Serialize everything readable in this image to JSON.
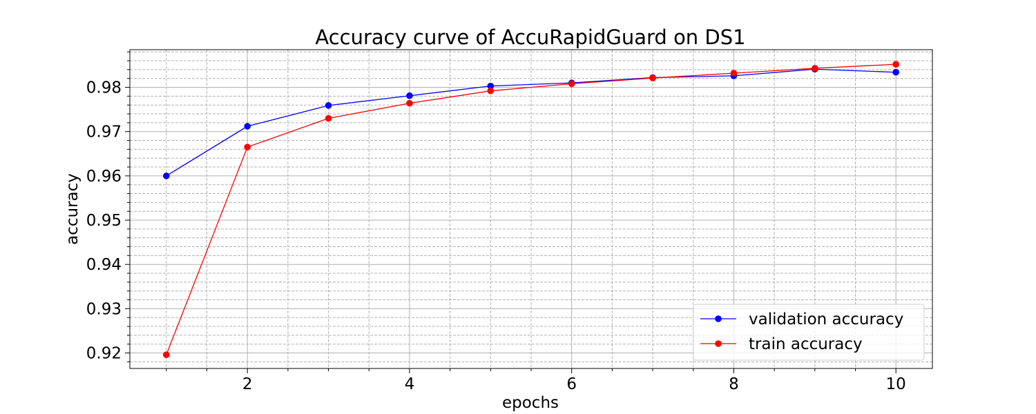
{
  "chart_data": {
    "type": "line",
    "title": "Accuracy curve of AccuRapidGuard on DS1",
    "xlabel": "epochs",
    "ylabel": "accuracy",
    "xlim": [
      0.55,
      10.45
    ],
    "ylim": [
      0.9165,
      0.9885
    ],
    "x_ticks": [
      2,
      4,
      6,
      8,
      10
    ],
    "x_tick_labels": [
      "2",
      "4",
      "6",
      "8",
      "10"
    ],
    "y_ticks": [
      0.92,
      0.93,
      0.94,
      0.95,
      0.96,
      0.97,
      0.98
    ],
    "y_tick_labels": [
      "0.92",
      "0.93",
      "0.94",
      "0.95",
      "0.96",
      "0.97",
      "0.98"
    ],
    "grid": true,
    "minor_grid": true,
    "legend_position": "lower-right",
    "x": [
      1,
      2,
      3,
      4,
      5,
      6,
      7,
      8,
      9,
      10
    ],
    "series": [
      {
        "name": "validation accuracy",
        "color": "#0000ff",
        "marker": "circle",
        "values": [
          0.96,
          0.9712,
          0.9759,
          0.9781,
          0.9803,
          0.981,
          0.9822,
          0.9826,
          0.9841,
          0.9834
        ]
      },
      {
        "name": "train accuracy",
        "color": "#ff0000",
        "marker": "circle",
        "values": [
          0.9196,
          0.9665,
          0.973,
          0.9764,
          0.9792,
          0.9808,
          0.9821,
          0.9832,
          0.9843,
          0.9852
        ]
      }
    ]
  }
}
